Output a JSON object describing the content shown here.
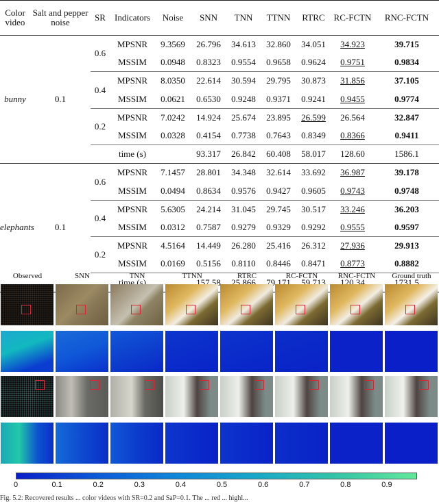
{
  "table": {
    "headers": [
      "Color video",
      "Salt and pepper noise",
      "SR",
      "Indicators",
      "Noise",
      "SNN",
      "TNN",
      "TTNN",
      "RTRC",
      "RC-FCTN",
      "RNC-FCTN"
    ],
    "groups": [
      {
        "video": "bunny",
        "noise_level": "0.1",
        "blocks": [
          {
            "sr": "0.6",
            "rows": [
              {
                "ind": "MPSNR",
                "vals": [
                  "9.3569",
                  "26.796",
                  "34.613",
                  "32.860",
                  "34.051",
                  "34.923",
                  "39.715"
                ]
              },
              {
                "ind": "MSSIM",
                "vals": [
                  "0.0948",
                  "0.8323",
                  "0.9554",
                  "0.9658",
                  "0.9624",
                  "0.9751",
                  "0.9834"
                ]
              }
            ]
          },
          {
            "sr": "0.4",
            "rows": [
              {
                "ind": "MPSNR",
                "vals": [
                  "8.0350",
                  "22.614",
                  "30.594",
                  "29.795",
                  "30.873",
                  "31.856",
                  "37.105"
                ]
              },
              {
                "ind": "MSSIM",
                "vals": [
                  "0.0621",
                  "0.6530",
                  "0.9248",
                  "0.9371",
                  "0.9241",
                  "0.9455",
                  "0.9774"
                ]
              }
            ]
          },
          {
            "sr": "0.2",
            "rows": [
              {
                "ind": "MPSNR",
                "vals": [
                  "7.0242",
                  "14.924",
                  "25.674",
                  "23.895",
                  "26.599",
                  "26.564",
                  "32.847"
                ]
              },
              {
                "ind": "MSSIM",
                "vals": [
                  "0.0328",
                  "0.4154",
                  "0.7738",
                  "0.7643",
                  "0.8349",
                  "0.8366",
                  "0.9411"
                ]
              }
            ]
          }
        ],
        "time": {
          "ind": "time (s)",
          "vals": [
            "",
            "93.317",
            "26.842",
            "60.408",
            "58.017",
            "128.60",
            "1586.1"
          ]
        }
      },
      {
        "video": "elephants",
        "noise_level": "0.1",
        "blocks": [
          {
            "sr": "0.6",
            "rows": [
              {
                "ind": "MPSNR",
                "vals": [
                  "7.1457",
                  "28.801",
                  "34.348",
                  "32.614",
                  "33.692",
                  "36.987",
                  "39.178"
                ]
              },
              {
                "ind": "MSSIM",
                "vals": [
                  "0.0494",
                  "0.8634",
                  "0.9576",
                  "0.9427",
                  "0.9605",
                  "0.9743",
                  "0.9748"
                ]
              }
            ]
          },
          {
            "sr": "0.4",
            "rows": [
              {
                "ind": "MPSNR",
                "vals": [
                  "5.6305",
                  "24.214",
                  "31.045",
                  "29.745",
                  "30.517",
                  "33.246",
                  "36.203"
                ]
              },
              {
                "ind": "MSSIM",
                "vals": [
                  "0.0312",
                  "0.7587",
                  "0.9279",
                  "0.9329",
                  "0.9292",
                  "0.9555",
                  "0.9597"
                ]
              }
            ]
          },
          {
            "sr": "0.2",
            "rows": [
              {
                "ind": "MPSNR",
                "vals": [
                  "4.5164",
                  "14.449",
                  "26.280",
                  "25.416",
                  "26.312",
                  "27.936",
                  "29.913"
                ]
              },
              {
                "ind": "MSSIM",
                "vals": [
                  "0.0169",
                  "0.5156",
                  "0.8110",
                  "0.8446",
                  "0.8471",
                  "0.8773",
                  "0.8882"
                ]
              }
            ]
          }
        ],
        "time": {
          "ind": "time (s)",
          "vals": [
            "",
            "157.58",
            "25.866",
            "79.171",
            "59.713",
            "120.34",
            "1731.5"
          ]
        }
      }
    ]
  },
  "figure": {
    "column_labels": [
      "Observed",
      "SNN",
      "TNN",
      "TTNN",
      "RTRC",
      "RC-FCTN",
      "RNC-FCTN",
      "Ground truth"
    ],
    "colorbar_ticks": [
      "0",
      "0.1",
      "0.2",
      "0.3",
      "0.4",
      "0.5",
      "0.6",
      "0.7",
      "0.8",
      "0.9"
    ],
    "colors": {
      "colorbar_low": "#0a1fc8",
      "colorbar_high": "#62e89a",
      "highlight_box": "#d22233"
    },
    "caption": "Fig. 5.2: Recovered results ... color videos with SR=0.2 and SaP=0.1. The ... red ... highl..."
  }
}
